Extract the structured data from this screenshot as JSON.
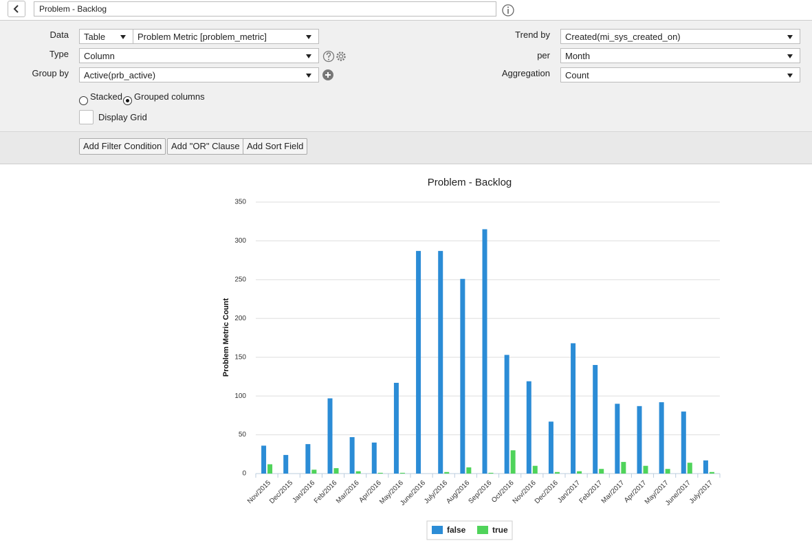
{
  "header": {
    "title": "Problem - Backlog"
  },
  "form": {
    "data": {
      "label": "Data",
      "table": "Table",
      "source": "Problem Metric [problem_metric]"
    },
    "type": {
      "label": "Type",
      "value": "Column"
    },
    "group_by": {
      "label": "Group by",
      "value": "Active(prb_active)"
    },
    "trend_by": {
      "label": "Trend by",
      "value": "Created(mi_sys_created_on)"
    },
    "per": {
      "label": "per",
      "value": "Month"
    },
    "aggregation": {
      "label": "Aggregation",
      "value": "Count"
    },
    "layout_options": [
      "Stacked",
      "Grouped columns"
    ],
    "display_grid": "Display Grid"
  },
  "buttons": [
    "Add Filter Condition",
    "Add \"OR\" Clause",
    "Add Sort Field"
  ],
  "chart_data": {
    "type": "bar",
    "title": "Problem - Backlog",
    "y_label": "Problem Metric Count",
    "categories": [
      "Nov/2015",
      "Dec/2015",
      "Jan/2016",
      "Feb/2016",
      "Mar/2016",
      "Apr/2016",
      "May/2016",
      "June/2016",
      "July/2016",
      "Aug/2016",
      "Sep/2016",
      "Oct/2016",
      "Nov/2016",
      "Dec/2016",
      "Jan/2017",
      "Feb/2017",
      "Mar/2017",
      "Apr/2017",
      "May/2017",
      "June/2017",
      "July/2017"
    ],
    "series": [
      {
        "name": "false",
        "color": "#2b8cd6",
        "values": [
          36,
          24,
          38,
          97,
          47,
          40,
          117,
          287,
          287,
          251,
          315,
          153,
          119,
          67,
          168,
          140,
          90,
          87,
          92,
          80,
          17
        ]
      },
      {
        "name": "true",
        "color": "#4fd35a",
        "values": [
          12,
          0,
          5,
          7,
          3,
          1,
          1,
          0,
          2,
          8,
          1,
          30,
          10,
          2,
          3,
          6,
          15,
          10,
          6,
          14,
          2
        ]
      }
    ],
    "ylim": [
      0,
      350
    ],
    "yticks": [
      0,
      50,
      100,
      150,
      200,
      250,
      300,
      350
    ],
    "grid": true,
    "legend": "bottom"
  }
}
